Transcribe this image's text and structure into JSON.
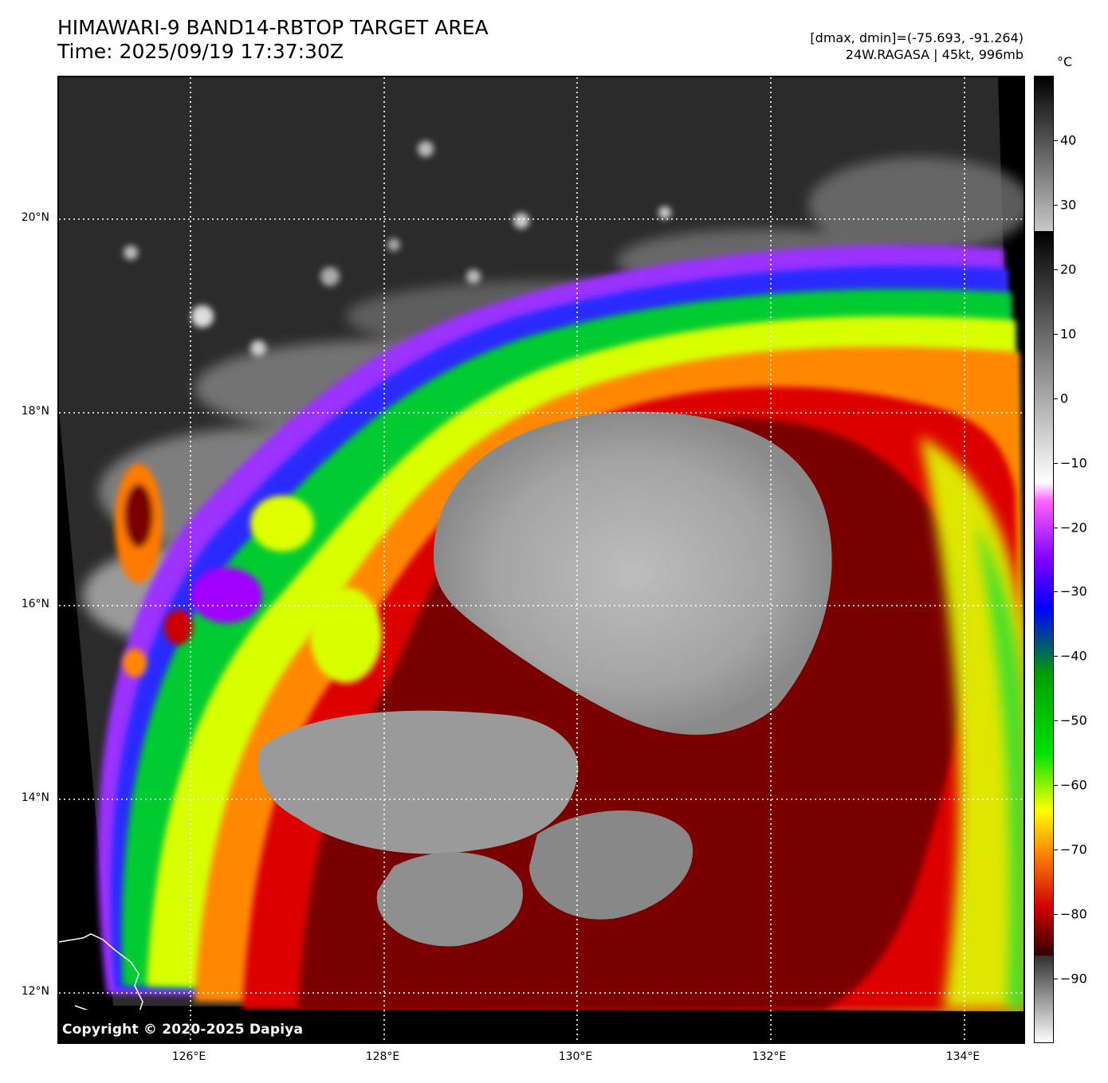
{
  "title": {
    "line1": "HIMAWARI-9 BAND14-RBTOP TARGET AREA",
    "line2": "Time: 2025/09/19 17:37:30Z"
  },
  "info": {
    "range": "[dmax, dmin]=(-75.693, -91.264)",
    "storm": "24W.RAGASA | 45kt, 996mb"
  },
  "copyright": "Copyright © 2020-2025 Dapiya",
  "latitude_labels": [
    "20°N",
    "18°N",
    "16°N",
    "14°N",
    "12°N"
  ],
  "longitude_labels": [
    "126°E",
    "128°E",
    "130°E",
    "132°E",
    "134°E"
  ],
  "colorbar": {
    "unit": "°C",
    "tick_labels": [
      "40",
      "30",
      "20",
      "10",
      "0",
      "−10",
      "−20",
      "−30",
      "−40",
      "−50",
      "−60",
      "−70",
      "−80",
      "−90"
    ],
    "range": [
      -100,
      50
    ]
  },
  "colors": {
    "cold_core": "#a9a9a9",
    "ring_red": "#c40000",
    "ring_dark": "#4a0000",
    "band_yellow": "#e8ff00",
    "band_green": "#00d000",
    "band_blue": "#2020ff",
    "band_purple": "#a000ff",
    "warm_land_sea": "#2a2a2a"
  }
}
